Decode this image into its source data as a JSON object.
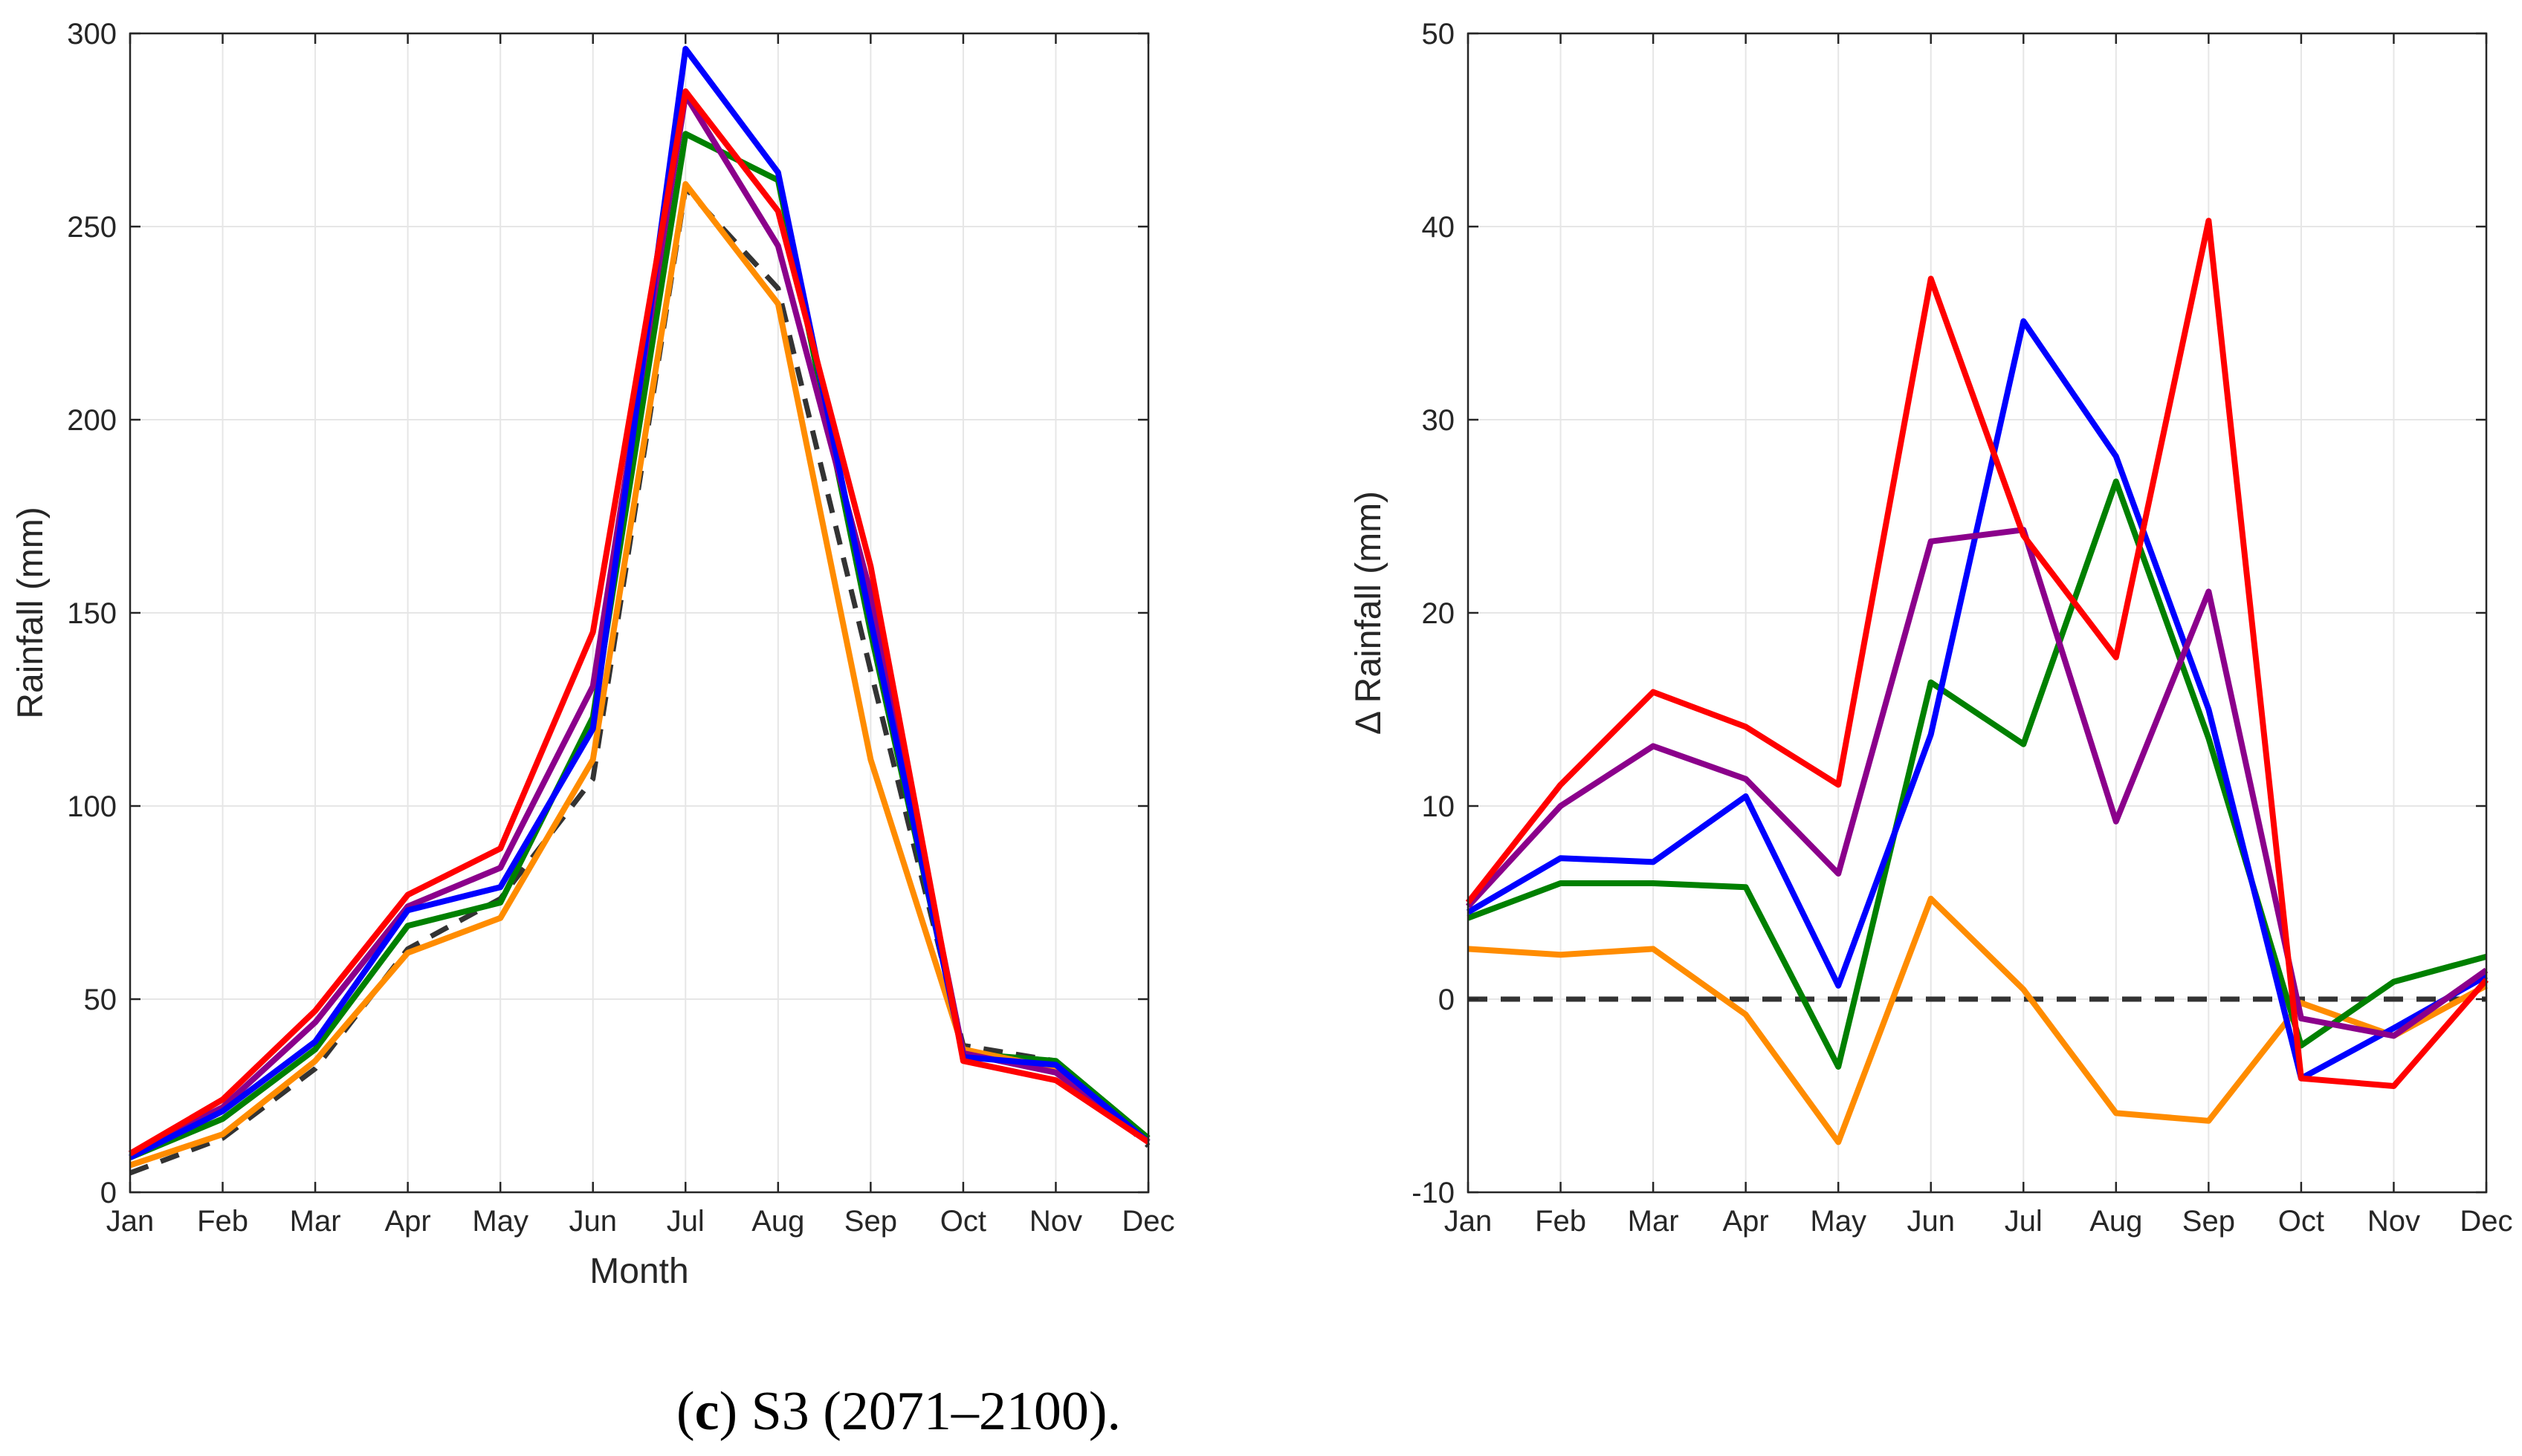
{
  "caption": {
    "label_open": "(",
    "label_letter": "c",
    "label_close": ")",
    "text": " S3 (2071–2100)."
  },
  "chart_data": [
    {
      "type": "line",
      "title": "",
      "xlabel": "Month",
      "ylabel": "Rainfall (mm)",
      "ylim": [
        0,
        300
      ],
      "yticks": [
        "0",
        "50",
        "100",
        "150",
        "200",
        "250",
        "300"
      ],
      "grid": true,
      "categories": [
        "Jan",
        "Feb",
        "Mar",
        "Apr",
        "May",
        "Jun",
        "Jul",
        "Aug",
        "Sep",
        "Oct",
        "Nov",
        "Dec"
      ],
      "series": [
        {
          "name": "baseline",
          "color": "#333333",
          "dashed": true,
          "values": [
            5,
            14,
            32,
            63,
            76,
            107,
            260,
            234,
            135,
            38,
            34,
            12
          ]
        },
        {
          "name": "green",
          "color": "#008000",
          "values": [
            9,
            19,
            37,
            69,
            75,
            123,
            274,
            262,
            145,
            36,
            34,
            14
          ]
        },
        {
          "name": "orange",
          "color": "#ff8c00",
          "values": [
            7,
            15,
            34,
            62,
            71,
            112,
            261,
            230,
            112,
            37,
            32,
            13
          ]
        },
        {
          "name": "purple",
          "color": "#8b008b",
          "values": [
            10,
            22,
            44,
            74,
            84,
            131,
            284,
            245,
            155,
            36,
            31,
            13
          ]
        },
        {
          "name": "blue",
          "color": "#0000ff",
          "values": [
            9,
            21,
            39,
            73,
            79,
            120,
            296,
            264,
            148,
            35,
            33,
            13
          ]
        },
        {
          "name": "red",
          "color": "#ff0000",
          "values": [
            10,
            24,
            47,
            77,
            89,
            145,
            285,
            254,
            162,
            34,
            29,
            13
          ]
        }
      ]
    },
    {
      "type": "line",
      "title": "",
      "xlabel": "",
      "ylabel": "Δ Rainfall (mm)",
      "ylim": [
        -10,
        50
      ],
      "yticks": [
        "-10",
        "0",
        "10",
        "20",
        "30",
        "40",
        "50"
      ],
      "grid": true,
      "categories": [
        "Jan",
        "Feb",
        "Mar",
        "Apr",
        "May",
        "Jun",
        "Jul",
        "Aug",
        "Sep",
        "Oct",
        "Nov",
        "Dec"
      ],
      "series": [
        {
          "name": "zero line",
          "color": "#333333",
          "dashed": true,
          "values": [
            0,
            0,
            0,
            0,
            0,
            0,
            0,
            0,
            0,
            0,
            0,
            0
          ]
        },
        {
          "name": "orange",
          "color": "#ff8c00",
          "values": [
            2.6,
            2.3,
            2.6,
            -0.8,
            -7.4,
            5.2,
            0.5,
            -5.9,
            -6.3,
            -0.2,
            -1.9,
            0.7
          ]
        },
        {
          "name": "green",
          "color": "#008000",
          "values": [
            4.2,
            6.0,
            6.0,
            5.8,
            -3.5,
            16.4,
            13.2,
            26.8,
            13.5,
            -2.4,
            0.9,
            2.2
          ]
        },
        {
          "name": "blue",
          "color": "#0000ff",
          "values": [
            4.5,
            7.3,
            7.1,
            10.5,
            0.7,
            13.7,
            35.1,
            28.1,
            15.0,
            -4.1,
            -1.5,
            1.2
          ]
        },
        {
          "name": "purple",
          "color": "#8b008b",
          "values": [
            4.8,
            10.0,
            13.1,
            11.4,
            6.5,
            23.7,
            24.3,
            9.2,
            21.1,
            -1.0,
            -1.9,
            1.5
          ]
        },
        {
          "name": "red",
          "color": "#ff0000",
          "values": [
            5.0,
            11.1,
            15.9,
            14.1,
            11.1,
            37.3,
            24.0,
            17.7,
            40.3,
            -4.1,
            -4.5,
            1.0
          ]
        }
      ]
    }
  ]
}
